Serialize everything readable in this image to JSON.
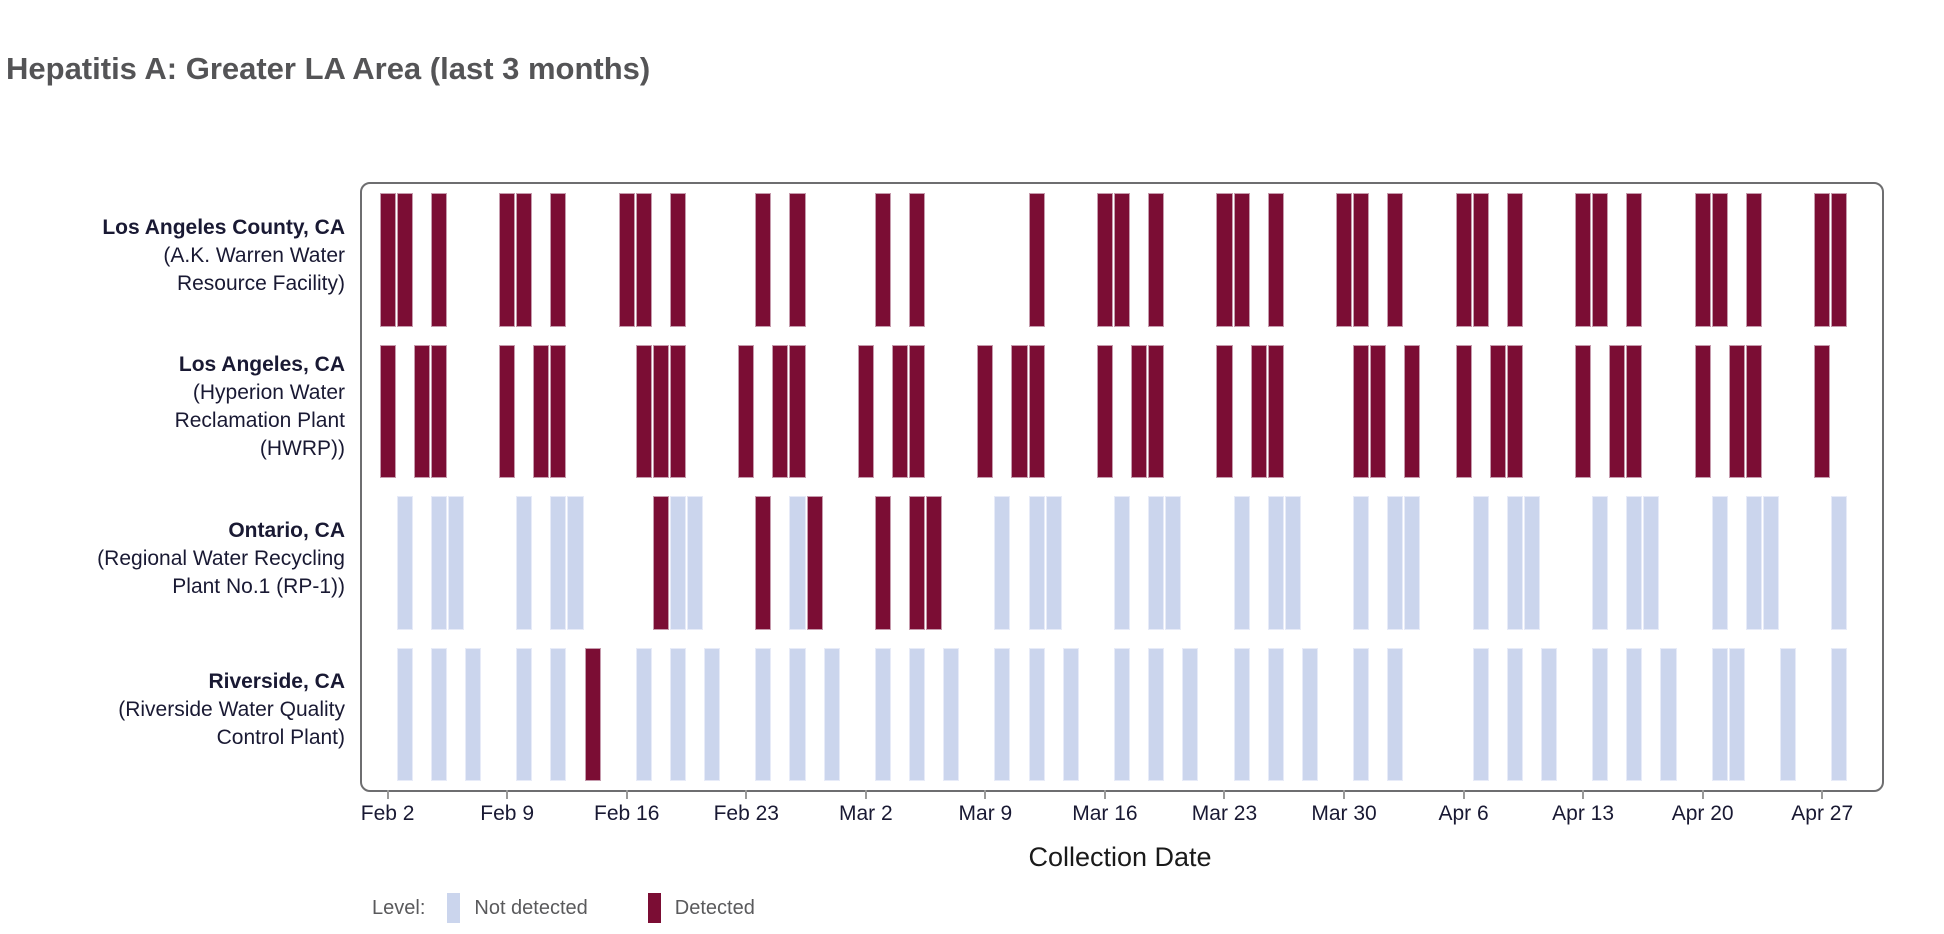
{
  "title": "Hepatitis A: Greater LA Area (last 3 months)",
  "colors": {
    "detected": "#7B0D34",
    "detected_border": "#C69BAD",
    "not_detected": "#CBD5ED",
    "not_detected_border": "#E7EBF8",
    "frame": "#6E6E70",
    "tick": "#9A9A9A",
    "title_text": "#545456",
    "label_text": "#191933",
    "axis_title_text": "#1A1A1A",
    "legend_text": "#5A5A5C"
  },
  "xaxis": {
    "title": "Collection Date",
    "start_date": "Feb 1",
    "end_date": "Apr 30",
    "total_days": 89,
    "ticks": [
      {
        "label": "Feb 2",
        "day": 1
      },
      {
        "label": "Feb 9",
        "day": 8
      },
      {
        "label": "Feb 16",
        "day": 15
      },
      {
        "label": "Feb 23",
        "day": 22
      },
      {
        "label": "Mar 2",
        "day": 29
      },
      {
        "label": "Mar 9",
        "day": 36
      },
      {
        "label": "Mar 16",
        "day": 43
      },
      {
        "label": "Mar 23",
        "day": 50
      },
      {
        "label": "Mar 30",
        "day": 57
      },
      {
        "label": "Apr 6",
        "day": 64
      },
      {
        "label": "Apr 13",
        "day": 71
      },
      {
        "label": "Apr 20",
        "day": 78
      },
      {
        "label": "Apr 27",
        "day": 85
      }
    ]
  },
  "legend": {
    "label": "Level:",
    "items": [
      {
        "label": "Not detected",
        "color_key": "not_detected"
      },
      {
        "label": "Detected",
        "color_key": "detected"
      }
    ]
  },
  "chart_data": {
    "type": "heatmap",
    "title": "Hepatitis A: Greater LA Area (last 3 months)",
    "xlabel": "Collection Date",
    "x_unit": "days since Feb 1",
    "legend_position": "bottom-left",
    "rows": [
      {
        "location": "Los Angeles County, CA",
        "sublines": [
          "(A.K. Warren Water",
          "Resource Facility)"
        ],
        "detected_days": [
          1,
          2,
          4,
          8,
          9,
          11,
          15,
          16,
          18,
          23,
          25,
          30,
          32,
          39,
          43,
          44,
          46,
          50,
          51,
          53,
          57,
          58,
          60,
          64,
          65,
          67,
          71,
          72,
          74,
          78,
          79,
          81,
          85,
          86
        ],
        "not_detected_days": []
      },
      {
        "location": "Los Angeles, CA",
        "sublines": [
          "(Hyperion Water",
          "Reclamation Plant",
          "(HWRP))"
        ],
        "detected_days": [
          1,
          3,
          4,
          8,
          10,
          11,
          16,
          17,
          18,
          22,
          24,
          25,
          29,
          31,
          32,
          36,
          38,
          39,
          43,
          45,
          46,
          50,
          52,
          53,
          58,
          59,
          61,
          64,
          66,
          67,
          71,
          73,
          74,
          78,
          80,
          81,
          85
        ],
        "not_detected_days": []
      },
      {
        "location": "Ontario, CA",
        "sublines": [
          "(Regional Water Recycling",
          "Plant No.1 (RP-1))"
        ],
        "detected_days": [
          17,
          23,
          26,
          30,
          32,
          33
        ],
        "not_detected_days": [
          2,
          4,
          5,
          9,
          11,
          12,
          18,
          19,
          25,
          37,
          39,
          40,
          44,
          46,
          47,
          51,
          53,
          54,
          58,
          60,
          61,
          65,
          67,
          68,
          72,
          74,
          75,
          79,
          81,
          82,
          86
        ]
      },
      {
        "location": "Riverside, CA",
        "sublines": [
          "(Riverside Water Quality",
          "Control Plant)"
        ],
        "detected_days": [
          13
        ],
        "not_detected_days": [
          2,
          4,
          6,
          9,
          11,
          16,
          18,
          20,
          23,
          25,
          27,
          30,
          32,
          34,
          37,
          39,
          41,
          44,
          46,
          48,
          51,
          53,
          55,
          58,
          60,
          65,
          67,
          69,
          72,
          74,
          76,
          79,
          80,
          83,
          86
        ]
      }
    ]
  }
}
